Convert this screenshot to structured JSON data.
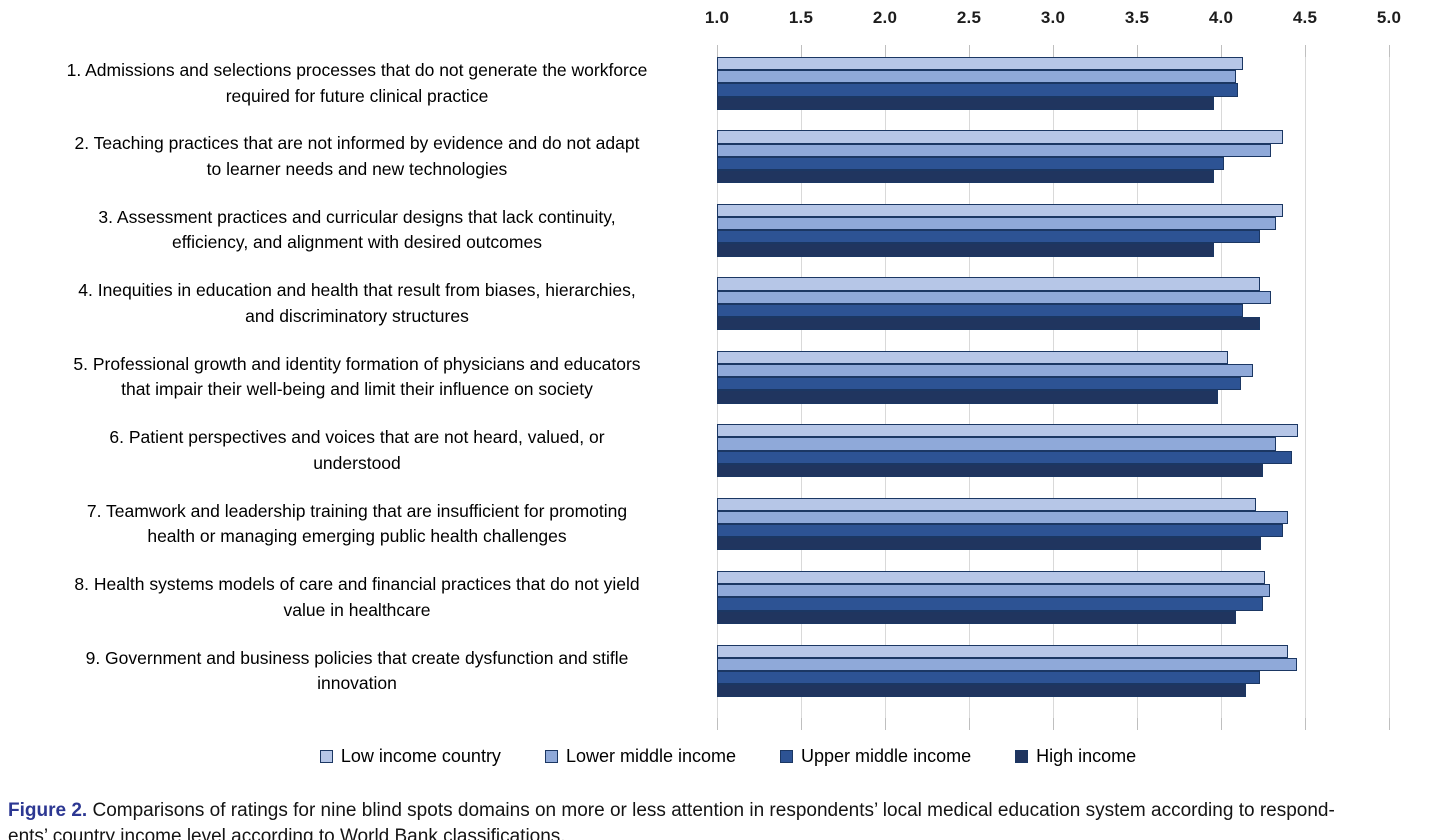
{
  "chart_data": {
    "type": "bar",
    "orientation": "horizontal",
    "title": "",
    "x_axis": {
      "position": "top",
      "min": 1.0,
      "max": 5.0,
      "step": 0.5,
      "tick_labels": [
        "1.0",
        "1.5",
        "2.0",
        "2.5",
        "3.0",
        "3.5",
        "4.0",
        "4.5",
        "5.0"
      ],
      "gridlines": true
    },
    "categories": [
      [
        "1. Admissions and selections processes that do not generate the workforce",
        "required for future clinical practice"
      ],
      [
        "2. Teaching practices that are not informed by evidence and do not adapt",
        "to learner needs and new technologies"
      ],
      [
        "3. Assessment practices and curricular designs that lack continuity,",
        "efficiency, and alignment with desired outcomes"
      ],
      [
        "4. Inequities in education and health that result from biases, hierarchies,",
        "and discriminatory structures"
      ],
      [
        "5. Professional growth and identity formation of physicians and educators",
        "that impair their well-being and limit their influence on society"
      ],
      [
        "6. Patient perspectives and voices that are not heard, valued, or",
        "understood"
      ],
      [
        "7. Teamwork and leadership training that are insufficient for promoting",
        "health or managing emerging public health challenges"
      ],
      [
        "8. Health systems models of care and financial practices that do not yield",
        "value in healthcare"
      ],
      [
        "9. Government and business policies that create dysfunction and stifle",
        "innovation"
      ]
    ],
    "series": [
      {
        "name": "Low income country",
        "color": "#b6c6e7",
        "values": [
          4.13,
          4.37,
          4.37,
          4.23,
          4.04,
          4.46,
          4.21,
          4.26,
          4.4
        ]
      },
      {
        "name": "Lower middle income",
        "color": "#8fa9d9",
        "values": [
          4.09,
          4.3,
          4.33,
          4.3,
          4.19,
          4.33,
          4.4,
          4.29,
          4.45
        ]
      },
      {
        "name": "Upper middle income",
        "color": "#2d5394",
        "values": [
          4.1,
          4.02,
          4.23,
          4.13,
          4.12,
          4.42,
          4.37,
          4.25,
          4.23
        ]
      },
      {
        "name": "High income",
        "color": "#20355f",
        "values": [
          3.96,
          3.96,
          3.96,
          4.23,
          3.98,
          4.25,
          4.24,
          4.09,
          4.15
        ]
      }
    ],
    "legend_position": "bottom",
    "bar_border_color": "#1b3763",
    "gridline_color": "#d9d9d9"
  },
  "caption": {
    "label": "Figure 2.",
    "line1": "Comparisons of ratings for nine blind spots domains on more or less attention in respondents’ local medical education system according to respond-",
    "line2": "ents’ country income level according to World Bank classifications."
  }
}
